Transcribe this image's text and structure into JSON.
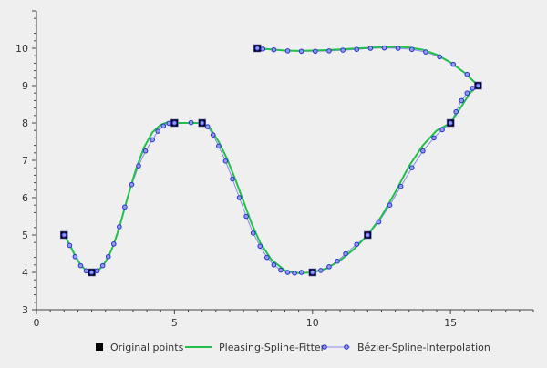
{
  "chart_data": {
    "type": "line",
    "title": "",
    "xlabel": "",
    "ylabel": "",
    "xlim": [
      0,
      18
    ],
    "ylim": [
      3,
      11
    ],
    "x_ticks": [
      0,
      5,
      10,
      15
    ],
    "y_ticks": [
      3,
      4,
      5,
      6,
      7,
      8,
      9,
      10
    ],
    "x_tick_labels": [
      "0",
      "5",
      "10",
      "15"
    ],
    "y_tick_labels": [
      "3",
      "4",
      "5",
      "6",
      "7",
      "8",
      "9",
      "10"
    ],
    "grid": false,
    "legend_position": "bottom",
    "series": [
      {
        "name": "Original points",
        "style": "markers",
        "color": "#000000",
        "points": [
          [
            1,
            5
          ],
          [
            2,
            4
          ],
          [
            5,
            8
          ],
          [
            6,
            8
          ],
          [
            8,
            10
          ],
          [
            10,
            4
          ],
          [
            12,
            5
          ],
          [
            15,
            8
          ],
          [
            16,
            9
          ]
        ]
      },
      {
        "name": "Pleasing-Spline-Fitter",
        "style": "line",
        "color": "#22c04a",
        "points": [
          [
            1,
            5
          ],
          [
            1.2,
            4.75
          ],
          [
            1.4,
            4.45
          ],
          [
            1.6,
            4.2
          ],
          [
            1.8,
            4.05
          ],
          [
            2,
            4
          ],
          [
            2.2,
            4.03
          ],
          [
            2.4,
            4.17
          ],
          [
            2.6,
            4.4
          ],
          [
            2.8,
            4.75
          ],
          [
            3,
            5.2
          ],
          [
            3.3,
            6
          ],
          [
            3.6,
            6.75
          ],
          [
            3.9,
            7.35
          ],
          [
            4.2,
            7.75
          ],
          [
            4.5,
            7.95
          ],
          [
            4.75,
            8.02
          ],
          [
            5,
            8
          ],
          [
            5.5,
            8
          ],
          [
            6,
            8
          ],
          [
            6.3,
            7.85
          ],
          [
            6.6,
            7.5
          ],
          [
            6.9,
            7.05
          ],
          [
            7.2,
            6.5
          ],
          [
            7.5,
            5.9
          ],
          [
            7.8,
            5.3
          ],
          [
            8.1,
            4.8
          ],
          [
            8.5,
            4.35
          ],
          [
            9,
            4.05
          ],
          [
            9.5,
            3.98
          ],
          [
            10,
            4
          ],
          [
            10.5,
            4.1
          ],
          [
            11,
            4.32
          ],
          [
            11.5,
            4.62
          ],
          [
            12,
            5
          ],
          [
            12.5,
            5.5
          ],
          [
            13,
            6.15
          ],
          [
            13.5,
            6.85
          ],
          [
            14,
            7.4
          ],
          [
            14.5,
            7.8
          ],
          [
            15,
            8
          ],
          [
            15.4,
            8.45
          ],
          [
            15.7,
            8.8
          ],
          [
            16,
            9
          ],
          [
            15.5,
            9.35
          ],
          [
            15,
            9.62
          ],
          [
            14.5,
            9.83
          ],
          [
            14,
            9.96
          ],
          [
            13.5,
            10.02
          ],
          [
            13,
            10.04
          ],
          [
            12.5,
            10.03
          ],
          [
            12,
            10.01
          ],
          [
            11.5,
            9.99
          ],
          [
            11,
            9.97
          ],
          [
            10.5,
            9.95
          ],
          [
            10,
            9.94
          ],
          [
            9.5,
            9.93
          ],
          [
            9,
            9.94
          ],
          [
            8.5,
            9.97
          ],
          [
            8,
            10
          ]
        ]
      },
      {
        "name": "Bézier-Spline-Interpolation",
        "style": "line-markers",
        "color": "#8888ee",
        "marker_color": "#2233cc",
        "points": [
          [
            1,
            5
          ],
          [
            1.2,
            4.72
          ],
          [
            1.4,
            4.42
          ],
          [
            1.6,
            4.18
          ],
          [
            1.8,
            4.04
          ],
          [
            2,
            4
          ],
          [
            2.2,
            4.04
          ],
          [
            2.4,
            4.18
          ],
          [
            2.6,
            4.42
          ],
          [
            2.8,
            4.76
          ],
          [
            3,
            5.22
          ],
          [
            3.2,
            5.75
          ],
          [
            3.45,
            6.35
          ],
          [
            3.7,
            6.85
          ],
          [
            3.95,
            7.25
          ],
          [
            4.2,
            7.55
          ],
          [
            4.4,
            7.78
          ],
          [
            4.6,
            7.92
          ],
          [
            4.8,
            7.99
          ],
          [
            5,
            8
          ],
          [
            5.6,
            8.01
          ],
          [
            6,
            8
          ],
          [
            6.2,
            7.9
          ],
          [
            6.4,
            7.68
          ],
          [
            6.6,
            7.38
          ],
          [
            6.85,
            6.98
          ],
          [
            7.1,
            6.5
          ],
          [
            7.35,
            6.0
          ],
          [
            7.6,
            5.5
          ],
          [
            7.85,
            5.05
          ],
          [
            8.1,
            4.7
          ],
          [
            8.35,
            4.4
          ],
          [
            8.6,
            4.2
          ],
          [
            8.85,
            4.06
          ],
          [
            9.1,
            4.0
          ],
          [
            9.35,
            3.98
          ],
          [
            9.6,
            4.0
          ],
          [
            10,
            4
          ],
          [
            10.3,
            4.05
          ],
          [
            10.6,
            4.15
          ],
          [
            10.9,
            4.3
          ],
          [
            11.2,
            4.5
          ],
          [
            11.6,
            4.75
          ],
          [
            12,
            5
          ],
          [
            12.4,
            5.35
          ],
          [
            12.8,
            5.8
          ],
          [
            13.2,
            6.3
          ],
          [
            13.6,
            6.8
          ],
          [
            14.0,
            7.25
          ],
          [
            14.4,
            7.6
          ],
          [
            14.7,
            7.82
          ],
          [
            15,
            8
          ],
          [
            15.2,
            8.3
          ],
          [
            15.4,
            8.6
          ],
          [
            15.6,
            8.8
          ],
          [
            15.8,
            8.93
          ],
          [
            16,
            9
          ],
          [
            15.6,
            9.3
          ],
          [
            15.1,
            9.57
          ],
          [
            14.6,
            9.77
          ],
          [
            14.1,
            9.9
          ],
          [
            13.6,
            9.97
          ],
          [
            13.1,
            10.0
          ],
          [
            12.6,
            10.01
          ],
          [
            12.1,
            10.0
          ],
          [
            11.6,
            9.97
          ],
          [
            11.1,
            9.95
          ],
          [
            10.6,
            9.93
          ],
          [
            10.1,
            9.92
          ],
          [
            9.6,
            9.92
          ],
          [
            9.1,
            9.93
          ],
          [
            8.6,
            9.96
          ],
          [
            8.2,
            9.98
          ],
          [
            8,
            10
          ]
        ]
      }
    ]
  }
}
